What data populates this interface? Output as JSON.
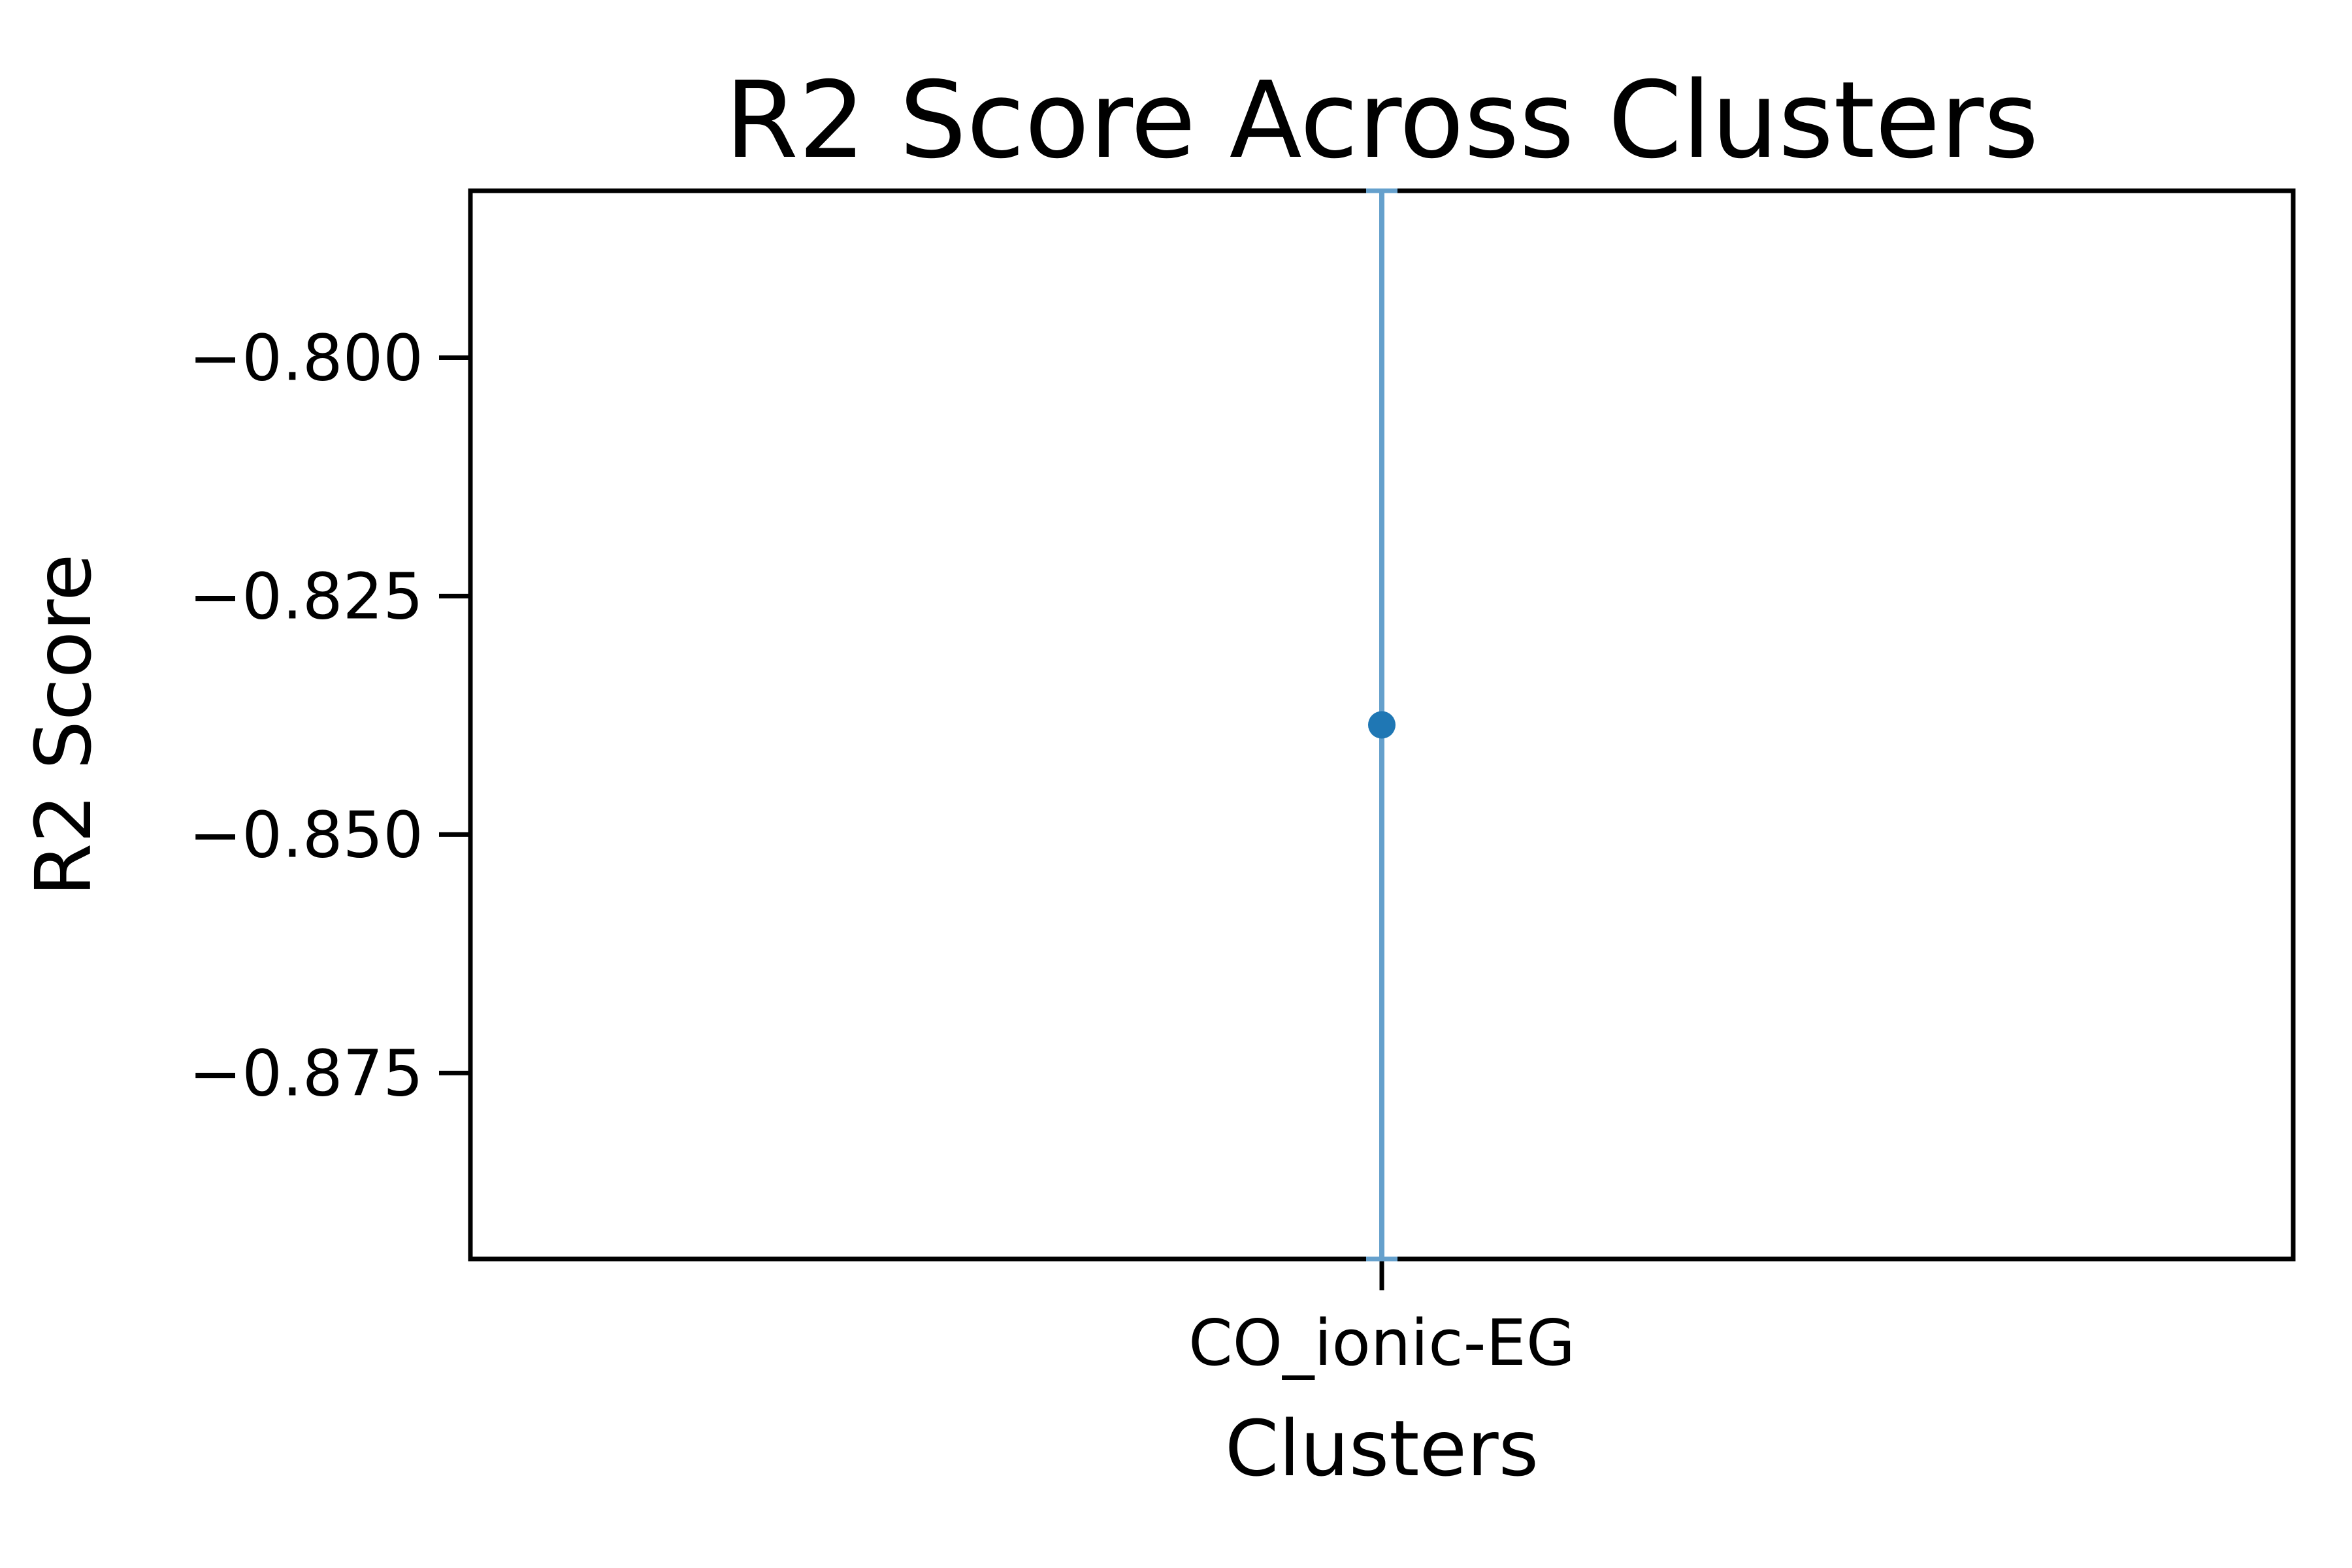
{
  "chart_data": {
    "type": "scatter",
    "title": "R2 Score Across Clusters",
    "xlabel": "Clusters",
    "ylabel": "R2 Score",
    "categories": [
      "CO_ionic-EG"
    ],
    "series": [
      {
        "values": [
          -0.8385
        ],
        "error_low": [
          -0.8945
        ],
        "error_high": [
          -0.7825
        ]
      }
    ],
    "yticks": [
      -0.8,
      -0.825,
      -0.85,
      -0.875
    ],
    "ytick_labels": [
      "−0.800",
      "−0.825",
      "−0.850",
      "−0.875"
    ],
    "ylim": [
      -0.8945,
      -0.7825
    ],
    "grid": false,
    "legend": "none",
    "colors": {
      "marker": "#1f77b4",
      "errorbar": "#65a0cc",
      "frame": "#000000"
    }
  }
}
